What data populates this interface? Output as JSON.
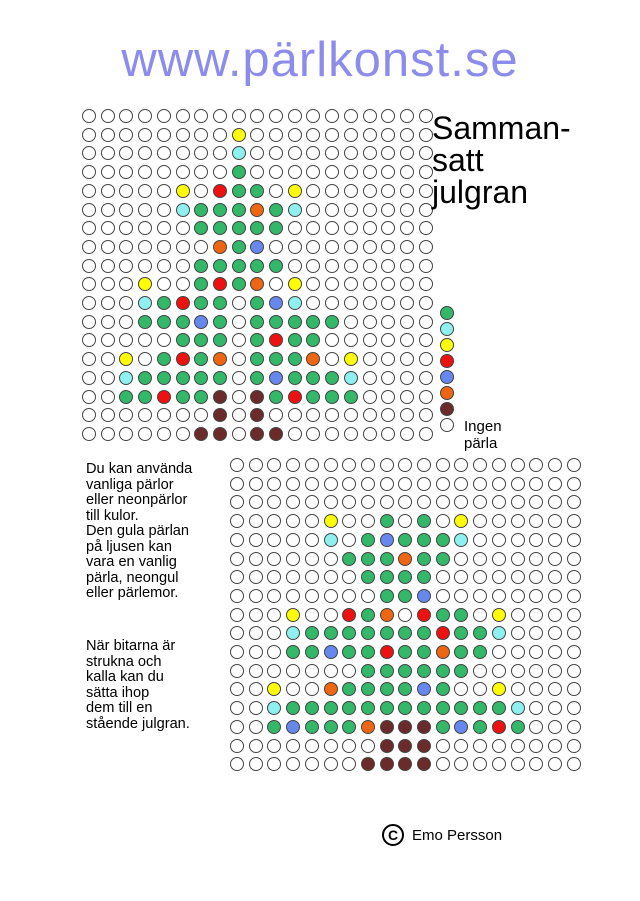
{
  "site": {
    "logo_text": "www.pärlkonst.se"
  },
  "title": {
    "lines": [
      "Samman-",
      "satt",
      "julgran"
    ]
  },
  "colors": {
    "w": "#ffffff",
    "G": "#33b86a",
    "C": "#8ff0f0",
    "Y": "#ffff00",
    "R": "#ee1111",
    "B": "#6688ee",
    "O": "#ee6611",
    "D": "#6b2b2b"
  },
  "legend": {
    "items": [
      {
        "color": "G",
        "name": "green"
      },
      {
        "color": "C",
        "name": "light blue"
      },
      {
        "color": "Y",
        "name": "yellow"
      },
      {
        "color": "R",
        "name": "red"
      },
      {
        "color": "B",
        "name": "blue"
      },
      {
        "color": "O",
        "name": "orange"
      },
      {
        "color": "D",
        "name": "brown"
      },
      {
        "color": "w",
        "name": "none"
      }
    ],
    "none_label": "Ingen pärla"
  },
  "pattern_top": [
    "wwwwwwwwwwwwwwwwwww",
    "wwwwwwwwYwwwwwwwwww",
    "wwwwwwwwCwwwwwwwwww",
    "wwwwwwwwGwwwwwwwwww",
    "wwwwwYwRGGwYwwwwwww",
    "wwwwwCGGGOGCwwwwwww",
    "wwwwwwGGGGGwwwwwwww",
    "wwwwwwwOGBwwwwwwwww",
    "wwwwwwGGGGGwwwwwwww",
    "wwwYwwGRGOwYwwwwwww",
    "wwwCGRGGwGBCwwwwwww",
    "wwwGGGBGwGGGGGwwwww",
    "wwwwwGGGwGRGGwwwwww",
    "wwYwGRGOwGGGOwYwwww",
    "wwCGGGGGwGBGGGCwwww",
    "wwGGRGGDwDGRGGGwwww",
    "wwwwwwwDwDwwwwwwwww",
    "wwwwwwDDwDDwwwwwwww"
  ],
  "pattern_bottom": [
    "wwwwwwwwwwwwwwwwwww",
    "wwwwwwwwwwwwwwwwwww",
    "wwwwwwwwwwwwwwwwwww",
    "wwwwwYwwGwGwYwwwwww",
    "wwwwwCwGBGGGCwwwwww",
    "wwwwwwGGGOGGwwwwwww",
    "wwwwwwwGGGGwwwwwwww",
    "wwwwwwwwGGBwwwwwwww",
    "wwwYwwRGOwRGGwYwwww",
    "wwwCGGGGGGGRGGCwwww",
    "wwwGGBGGRGGOGGwwwww",
    "wwwwwwwGGGGGGwwwwww",
    "wwYwwOGGGGBGwwYwwww",
    "wwCGGGGGGGGGGGGCwww",
    "wwGBGGGODDDGBGRGwww",
    "wwwwwwwwDDDwwwwwwww",
    "wwwwwwwDDDDwwwwwwww"
  ],
  "instructions": {
    "para1": [
      "Du kan använda",
      "vanliga pärlor",
      "eller neonpärlor",
      "till kulor.",
      "Den gula pärlan",
      "på ljusen kan",
      "vara en vanlig",
      "pärla, neongul",
      "eller pärlemor."
    ],
    "para2": [
      "När bitarna är",
      "strukna och",
      "kalla kan du",
      "sätta ihop",
      "dem till en",
      "stående julgran."
    ]
  },
  "credit": {
    "symbol": "C",
    "author": "Emo Persson"
  }
}
